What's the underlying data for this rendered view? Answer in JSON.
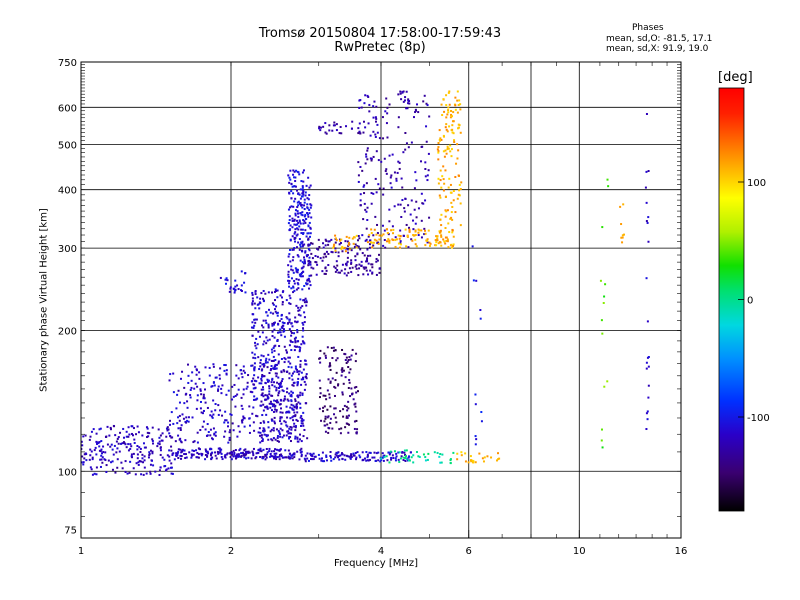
{
  "chart_data": {
    "type": "scatter",
    "title": "Tromsø 20150804  17:58:00-17:59:43",
    "subtitle": "RwPretec (8p)",
    "xlabel": "Frequency [MHz]",
    "ylabel": "Stationary phase Virtual Height [km]",
    "x_scale": "log",
    "y_scale": "log",
    "xlim": [
      1,
      16
    ],
    "ylim": [
      72,
      750
    ],
    "x_ticks": [
      1,
      2,
      4,
      6,
      10,
      16
    ],
    "y_ticks": [
      75,
      100,
      200,
      300,
      400,
      500,
      600,
      750
    ],
    "grid": true,
    "phase_stats": {
      "title": "Phases",
      "o_line": "mean, sd,O: -81.5, 17.1",
      "x_line": "mean, sd,X:  91.9, 19.0"
    },
    "colorbar": {
      "label": "[deg]",
      "range": [
        -180,
        180
      ],
      "ticks": [
        100,
        0,
        -100
      ],
      "colormap": "rainbow"
    },
    "series": [
      {
        "x_range": [
          1.0,
          1.55
        ],
        "y_range": [
          98,
          125
        ],
        "phase": -118,
        "count": 230
      },
      {
        "x_range": [
          1.55,
          2.8
        ],
        "y_range": [
          106,
          112
        ],
        "phase": -118,
        "count": 220
      },
      {
        "x_range": [
          2.8,
          4.6
        ],
        "y_range": [
          105,
          110
        ],
        "phase": -112,
        "count": 130
      },
      {
        "x_range": [
          4.0,
          5.6
        ],
        "y_range": [
          104,
          111
        ],
        "phase": -5,
        "count": 40
      },
      {
        "x_range": [
          5.6,
          7.0
        ],
        "y_range": [
          104,
          110
        ],
        "phase": 110,
        "count": 25
      },
      {
        "x_range": [
          1.5,
          2.8
        ],
        "y_range": [
          115,
          170
        ],
        "phase": -115,
        "count": 380
      },
      {
        "x_range": [
          2.2,
          2.85
        ],
        "y_range": [
          150,
          245
        ],
        "phase": -115,
        "count": 320
      },
      {
        "x_range": [
          2.3,
          2.85
        ],
        "y_range": [
          115,
          150
        ],
        "phase": -118,
        "count": 120
      },
      {
        "x_range": [
          2.6,
          2.9
        ],
        "y_range": [
          245,
          440
        ],
        "phase": -108,
        "count": 260
      },
      {
        "x_range": [
          1.9,
          2.15
        ],
        "y_range": [
          240,
          270
        ],
        "phase": -108,
        "count": 25
      },
      {
        "x_range": [
          3.0,
          3.6
        ],
        "y_range": [
          120,
          185
        ],
        "phase": -145,
        "count": 140
      },
      {
        "x_range": [
          2.85,
          4.0
        ],
        "y_range": [
          262,
          315
        ],
        "phase": -130,
        "count": 150
      },
      {
        "x_range": [
          3.6,
          5.0
        ],
        "y_range": [
          330,
          640
        ],
        "phase": -125,
        "count": 170
      },
      {
        "x_range": [
          3.5,
          5.0
        ],
        "y_range": [
          300,
          330
        ],
        "phase": -125,
        "count": 30
      },
      {
        "x_range": [
          3.0,
          3.7
        ],
        "y_range": [
          525,
          560
        ],
        "phase": -128,
        "count": 30
      },
      {
        "x_range": [
          4.3,
          4.6
        ],
        "y_range": [
          610,
          650
        ],
        "phase": -128,
        "count": 12
      },
      {
        "x_range": [
          3.7,
          5.6
        ],
        "y_range": [
          300,
          330
        ],
        "phase": 112,
        "count": 110
      },
      {
        "x_range": [
          5.2,
          5.8
        ],
        "y_range": [
          330,
          650
        ],
        "phase": 112,
        "count": 130
      },
      {
        "x_range": [
          3.2,
          3.6
        ],
        "y_range": [
          295,
          320
        ],
        "phase": 112,
        "count": 25
      },
      {
        "x_range": [
          6.1,
          6.4
        ],
        "y_range": [
          105,
          330
        ],
        "phase": -100,
        "count": 12
      },
      {
        "x_range": [
          11.0,
          11.5
        ],
        "y_range": [
          110,
          430
        ],
        "phase": 40,
        "count": 14
      },
      {
        "x_range": [
          12.0,
          12.3
        ],
        "y_range": [
          300,
          380
        ],
        "phase": 110,
        "count": 8
      },
      {
        "x_range": [
          13.6,
          13.8
        ],
        "y_range": [
          115,
          600
        ],
        "phase": -115,
        "count": 22
      }
    ]
  }
}
